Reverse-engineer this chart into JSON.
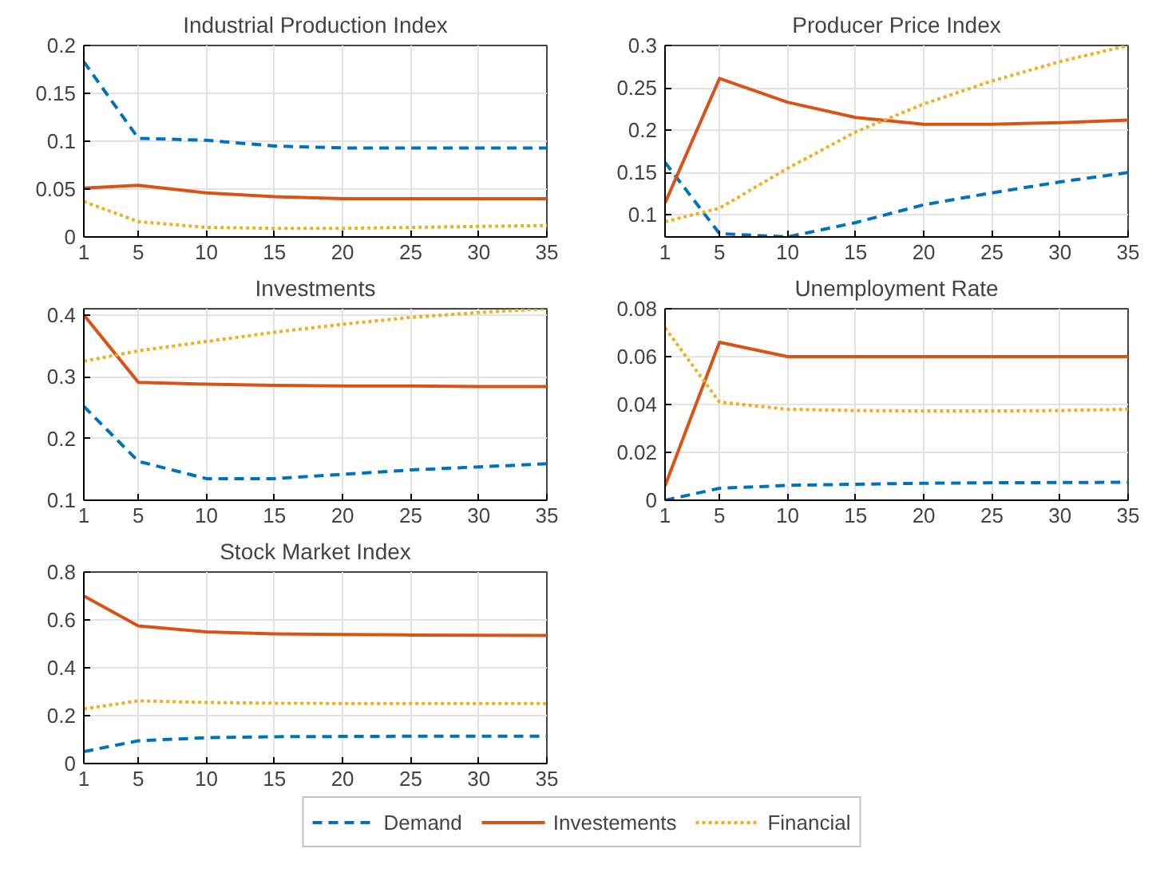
{
  "chart_data": [
    {
      "type": "line",
      "title": "Industrial Production Index",
      "x": [
        1,
        5,
        10,
        15,
        20,
        25,
        30,
        35
      ],
      "xlim": [
        1,
        35
      ],
      "xticks": [
        1,
        5,
        10,
        15,
        20,
        25,
        30,
        35
      ],
      "ylim": [
        0,
        0.2
      ],
      "yticks": [
        0,
        0.05,
        0.1,
        0.15,
        0.2
      ],
      "grid": true,
      "series": [
        {
          "color": "#0072bd",
          "line_style": "dashed",
          "values": [
            0.183,
            0.103,
            0.101,
            0.095,
            0.093,
            0.093,
            0.093,
            0.093
          ]
        },
        {
          "color": "#d95319",
          "line_style": "solid",
          "values": [
            0.051,
            0.054,
            0.046,
            0.042,
            0.04,
            0.04,
            0.04,
            0.04
          ]
        },
        {
          "color": "#edb120",
          "line_style": "dotted",
          "values": [
            0.037,
            0.016,
            0.01,
            0.009,
            0.009,
            0.01,
            0.011,
            0.012
          ]
        }
      ]
    },
    {
      "type": "line",
      "title": "Producer Price Index",
      "x": [
        1,
        5,
        10,
        15,
        20,
        25,
        30,
        35
      ],
      "xlim": [
        1,
        35
      ],
      "xticks": [
        1,
        5,
        10,
        15,
        20,
        25,
        30,
        35
      ],
      "ylim": [
        0.074,
        0.3
      ],
      "yticks": [
        0.1,
        0.15,
        0.2,
        0.25,
        0.3
      ],
      "grid": true,
      "series": [
        {
          "color": "#0072bd",
          "line_style": "dashed",
          "values": [
            0.162,
            0.078,
            0.074,
            0.091,
            0.112,
            0.126,
            0.139,
            0.15
          ]
        },
        {
          "color": "#d95319",
          "line_style": "solid",
          "values": [
            0.114,
            0.261,
            0.233,
            0.215,
            0.207,
            0.207,
            0.209,
            0.212
          ]
        },
        {
          "color": "#edb120",
          "line_style": "dotted",
          "values": [
            0.092,
            0.108,
            0.155,
            0.198,
            0.231,
            0.258,
            0.281,
            0.3
          ]
        }
      ]
    },
    {
      "type": "line",
      "title": "Investments",
      "x": [
        1,
        5,
        10,
        15,
        20,
        25,
        30,
        35
      ],
      "xlim": [
        1,
        35
      ],
      "xticks": [
        1,
        5,
        10,
        15,
        20,
        25,
        30,
        35
      ],
      "ylim": [
        0.1,
        0.41
      ],
      "yticks": [
        0.1,
        0.2,
        0.3,
        0.4
      ],
      "grid": true,
      "series": [
        {
          "color": "#0072bd",
          "line_style": "dashed",
          "values": [
            0.252,
            0.163,
            0.135,
            0.135,
            0.142,
            0.149,
            0.154,
            0.159
          ]
        },
        {
          "color": "#d95319",
          "line_style": "solid",
          "values": [
            0.4,
            0.291,
            0.288,
            0.286,
            0.285,
            0.285,
            0.284,
            0.284
          ]
        },
        {
          "color": "#edb120",
          "line_style": "dotted",
          "values": [
            0.325,
            0.342,
            0.357,
            0.372,
            0.385,
            0.396,
            0.404,
            0.41
          ]
        }
      ]
    },
    {
      "type": "line",
      "title": "Unemployment Rate",
      "x": [
        1,
        5,
        10,
        15,
        20,
        25,
        30,
        35
      ],
      "xlim": [
        1,
        35
      ],
      "xticks": [
        1,
        5,
        10,
        15,
        20,
        25,
        30,
        35
      ],
      "ylim": [
        0,
        0.08
      ],
      "yticks": [
        0,
        0.02,
        0.04,
        0.06,
        0.08
      ],
      "grid": true,
      "series": [
        {
          "color": "#0072bd",
          "line_style": "dashed",
          "values": [
            0.0,
            0.005,
            0.0062,
            0.0067,
            0.0071,
            0.0073,
            0.0074,
            0.0075
          ]
        },
        {
          "color": "#d95319",
          "line_style": "solid",
          "values": [
            0.006,
            0.066,
            0.06,
            0.06,
            0.06,
            0.06,
            0.06,
            0.06
          ]
        },
        {
          "color": "#edb120",
          "line_style": "dotted",
          "values": [
            0.072,
            0.041,
            0.038,
            0.0375,
            0.0373,
            0.0373,
            0.0375,
            0.038
          ]
        }
      ]
    },
    {
      "type": "line",
      "title": "Stock Market Index",
      "x": [
        1,
        5,
        10,
        15,
        20,
        25,
        30,
        35
      ],
      "xlim": [
        1,
        35
      ],
      "xticks": [
        1,
        5,
        10,
        15,
        20,
        25,
        30,
        35
      ],
      "ylim": [
        0,
        0.8
      ],
      "yticks": [
        0,
        0.2,
        0.4,
        0.6,
        0.8
      ],
      "grid": true,
      "legend": "bottom",
      "series": [
        {
          "name": "Demand",
          "color": "#0072bd",
          "line_style": "dashed",
          "values": [
            0.05,
            0.095,
            0.108,
            0.112,
            0.113,
            0.114,
            0.114,
            0.114
          ]
        },
        {
          "name": "Investements",
          "color": "#d95319",
          "line_style": "solid",
          "values": [
            0.7,
            0.575,
            0.55,
            0.542,
            0.539,
            0.537,
            0.536,
            0.535
          ]
        },
        {
          "name": "Financial",
          "color": "#edb120",
          "line_style": "dotted",
          "values": [
            0.228,
            0.262,
            0.255,
            0.252,
            0.251,
            0.251,
            0.251,
            0.251
          ]
        }
      ]
    }
  ]
}
